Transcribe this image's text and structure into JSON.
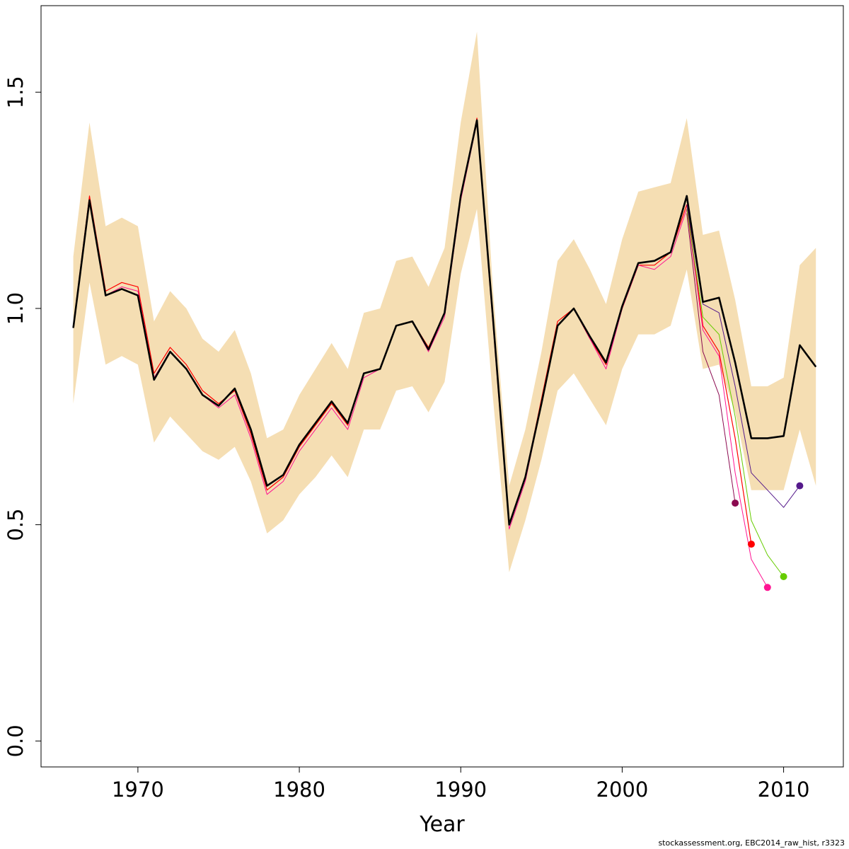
{
  "chart_data": {
    "type": "line",
    "xlabel": "Year",
    "ylabel": "",
    "title": "",
    "xlim": [
      1964,
      2013.7
    ],
    "ylim": [
      -0.06,
      1.7
    ],
    "x_ticks": [
      1970,
      1980,
      1990,
      2000,
      2010
    ],
    "y_ticks": [
      0.0,
      0.5,
      1.0,
      1.5
    ],
    "y_tick_labels": [
      "0.0",
      "0.5",
      "1.0",
      "1.5"
    ],
    "x_tick_labels": [
      "1970",
      "1980",
      "1990",
      "2000",
      "2010"
    ],
    "grid": false,
    "legend": "none",
    "colors": {
      "band": "#f5deb3",
      "main": "#000000",
      "retro_red": "#ff0000",
      "retro_pink": "#ff1493",
      "retro_green": "#66cc00",
      "retro_maroon": "#8b0a50",
      "retro_purple": "#551a8b"
    },
    "band": {
      "x": [
        1966,
        1967,
        1968,
        1969,
        1970,
        1971,
        1972,
        1973,
        1974,
        1975,
        1976,
        1977,
        1978,
        1979,
        1980,
        1981,
        1982,
        1983,
        1984,
        1985,
        1986,
        1987,
        1988,
        1989,
        1990,
        1991,
        1992,
        1993,
        1994,
        1995,
        1996,
        1997,
        1998,
        1999,
        2000,
        2001,
        2002,
        2003,
        2004,
        2005,
        2006,
        2007,
        2008,
        2009,
        2010,
        2011,
        2012
      ],
      "upper": [
        1.12,
        1.43,
        1.19,
        1.21,
        1.19,
        0.97,
        1.04,
        1.0,
        0.93,
        0.9,
        0.95,
        0.85,
        0.7,
        0.72,
        0.8,
        0.86,
        0.92,
        0.86,
        0.99,
        1.0,
        1.11,
        1.12,
        1.05,
        1.14,
        1.43,
        1.64,
        1.04,
        0.59,
        0.72,
        0.9,
        1.11,
        1.16,
        1.09,
        1.01,
        1.16,
        1.27,
        1.28,
        1.29,
        1.44,
        1.17,
        1.18,
        1.02,
        0.82,
        0.82,
        0.84,
        1.1,
        1.14
      ],
      "lower": [
        0.78,
        1.06,
        0.87,
        0.89,
        0.87,
        0.69,
        0.75,
        0.71,
        0.67,
        0.65,
        0.68,
        0.6,
        0.48,
        0.51,
        0.57,
        0.61,
        0.66,
        0.61,
        0.72,
        0.72,
        0.81,
        0.82,
        0.76,
        0.83,
        1.08,
        1.23,
        0.79,
        0.39,
        0.51,
        0.65,
        0.81,
        0.85,
        0.79,
        0.73,
        0.86,
        0.94,
        0.94,
        0.96,
        1.09,
        0.86,
        0.87,
        0.76,
        0.58,
        0.58,
        0.58,
        0.72,
        0.59
      ]
    },
    "series": [
      {
        "color": "#ff0000",
        "width": 1.2,
        "x": [
          1966,
          1967,
          1968,
          1969,
          1970,
          1971,
          1972,
          1973,
          1974,
          1975,
          1976,
          1977,
          1978,
          1979,
          1980,
          1981,
          1982,
          1983,
          1984,
          1985,
          1986,
          1987,
          1988,
          1989,
          1990,
          1991,
          1992,
          1993,
          1994,
          1995,
          1996,
          1997,
          1998,
          1999,
          2000,
          2001,
          2002,
          2003,
          2004,
          2005,
          2006,
          2007,
          2008
        ],
        "y": [
          0.96,
          1.26,
          1.04,
          1.06,
          1.05,
          0.85,
          0.91,
          0.87,
          0.81,
          0.78,
          0.81,
          0.71,
          0.58,
          0.61,
          0.68,
          0.73,
          0.78,
          0.73,
          0.85,
          0.86,
          0.96,
          0.97,
          0.91,
          0.99,
          1.26,
          1.44,
          0.97,
          0.5,
          0.61,
          0.79,
          0.97,
          1.0,
          0.93,
          0.87,
          1.0,
          1.1,
          1.1,
          1.13,
          1.24,
          0.96,
          0.9,
          0.7,
          0.455
        ]
      },
      {
        "color": "#ff1493",
        "width": 1.0,
        "x": [
          1966,
          1967,
          1968,
          1969,
          1970,
          1971,
          1972,
          1973,
          1974,
          1975,
          1976,
          1977,
          1978,
          1979,
          1980,
          1981,
          1982,
          1983,
          1984,
          1985,
          1986,
          1987,
          1988,
          1989,
          1990,
          1991,
          1992,
          1993,
          1994,
          1995,
          1996,
          1997,
          1998,
          1999,
          2000,
          2001,
          2002,
          2003,
          2004,
          2005,
          2006,
          2007,
          2008,
          2009
        ],
        "y": [
          0.96,
          1.25,
          1.03,
          1.05,
          1.04,
          0.84,
          0.9,
          0.86,
          0.8,
          0.77,
          0.8,
          0.7,
          0.57,
          0.6,
          0.67,
          0.72,
          0.77,
          0.72,
          0.84,
          0.86,
          0.96,
          0.97,
          0.9,
          0.98,
          1.25,
          1.43,
          0.96,
          0.49,
          0.6,
          0.78,
          0.96,
          1.0,
          0.93,
          0.86,
          1.0,
          1.1,
          1.09,
          1.12,
          1.23,
          0.95,
          0.89,
          0.62,
          0.42,
          0.355
        ]
      },
      {
        "color": "#66cc00",
        "width": 1.0,
        "x": [
          2004,
          2005,
          2006,
          2007,
          2008,
          2009,
          2010
        ],
        "y": [
          1.23,
          0.98,
          0.94,
          0.75,
          0.51,
          0.43,
          0.38
        ]
      },
      {
        "color": "#8b0a50",
        "width": 1.0,
        "x": [
          2004,
          2005,
          2006,
          2007
        ],
        "y": [
          1.22,
          0.9,
          0.8,
          0.55
        ]
      },
      {
        "color": "#551a8b",
        "width": 1.0,
        "x": [
          2004,
          2005,
          2006,
          2007,
          2008,
          2009,
          2010,
          2011
        ],
        "y": [
          1.24,
          1.01,
          0.99,
          0.82,
          0.62,
          0.58,
          0.54,
          0.59
        ]
      },
      {
        "color": "#000000",
        "width": 2.6,
        "x": [
          1966,
          1967,
          1968,
          1969,
          1970,
          1971,
          1972,
          1973,
          1974,
          1975,
          1976,
          1977,
          1978,
          1979,
          1980,
          1981,
          1982,
          1983,
          1984,
          1985,
          1986,
          1987,
          1988,
          1989,
          1990,
          1991,
          1992,
          1993,
          1994,
          1995,
          1996,
          1997,
          1998,
          1999,
          2000,
          2001,
          2002,
          2003,
          2004,
          2005,
          2006,
          2007,
          2008,
          2009,
          2010,
          2011,
          2012
        ],
        "y": [
          0.955,
          1.25,
          1.03,
          1.045,
          1.03,
          0.835,
          0.9,
          0.86,
          0.8,
          0.775,
          0.815,
          0.72,
          0.59,
          0.615,
          0.685,
          0.735,
          0.785,
          0.735,
          0.85,
          0.86,
          0.96,
          0.97,
          0.905,
          0.99,
          1.26,
          1.435,
          0.975,
          0.5,
          0.61,
          0.78,
          0.96,
          1.0,
          0.935,
          0.875,
          1.005,
          1.105,
          1.11,
          1.13,
          1.26,
          1.015,
          1.025,
          0.875,
          0.7,
          0.7,
          0.705,
          0.915,
          0.865
        ]
      }
    ],
    "end_points": [
      {
        "x": 2007,
        "y": 0.55,
        "color": "#8b0a50"
      },
      {
        "x": 2008,
        "y": 0.455,
        "color": "#ff0000"
      },
      {
        "x": 2009,
        "y": 0.355,
        "color": "#ff1493"
      },
      {
        "x": 2010,
        "y": 0.38,
        "color": "#66cc00"
      },
      {
        "x": 2011,
        "y": 0.59,
        "color": "#551a8b"
      }
    ]
  },
  "footer": "stockassessment.org, EBC2014_raw_hist, r3323"
}
